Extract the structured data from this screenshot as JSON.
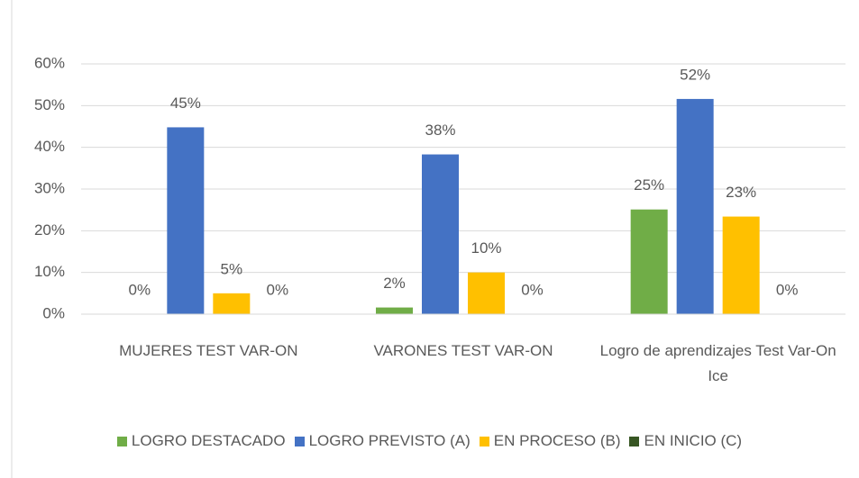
{
  "chart_data": {
    "type": "bar",
    "categories": [
      "MUJERES TEST VAR-ON",
      "VARONES TEST VAR-ON",
      "Logro de aprendizajes Test Var-On Ice"
    ],
    "series": [
      {
        "name": "LOGRO DESTACADO",
        "color": "#70ad47",
        "values": [
          0,
          1.6,
          25.1
        ],
        "value_labels": [
          "0%",
          "2%",
          "25%"
        ]
      },
      {
        "name": "LOGRO PREVISTO (A)",
        "color": "#4472c4",
        "values": [
          44.8,
          38.3,
          51.6
        ],
        "value_labels": [
          "45%",
          "38%",
          "52%"
        ]
      },
      {
        "name": "EN PROCESO (B)",
        "color": "#ffc000",
        "values": [
          5,
          10,
          23.4
        ],
        "value_labels": [
          "5%",
          "10%",
          "23%"
        ]
      },
      {
        "name": "EN INICIO (C)",
        "color": "#375623",
        "values": [
          0,
          0,
          0
        ],
        "value_labels": [
          "0%",
          "0%",
          "0%"
        ]
      }
    ],
    "ylim": [
      0,
      60
    ],
    "yticks": [
      {
        "value": 0,
        "label": "0%"
      },
      {
        "value": 10,
        "label": "10%"
      },
      {
        "value": 20,
        "label": "20%"
      },
      {
        "value": 30,
        "label": "30%"
      },
      {
        "value": 40,
        "label": "40%"
      },
      {
        "value": 50,
        "label": "50%"
      },
      {
        "value": 60,
        "label": "60%"
      }
    ],
    "grid": true
  }
}
